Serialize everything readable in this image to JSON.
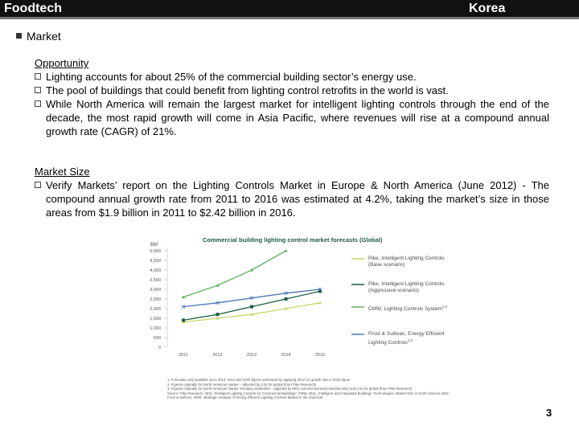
{
  "header": {
    "left": "Foodtech",
    "right": "Korea"
  },
  "section": "Market",
  "blocks": [
    {
      "heading": "Opportunity",
      "items": [
        "Lighting accounts for about 25% of the commercial building sector’s energy use.",
        "The pool of buildings that could benefit from lighting control retrofits in the world is vast.",
        "While North America will remain the largest market for intelligent lighting controls through the end of the decade, the most rapid growth will come in Asia Pacific, where revenues will rise at a compound annual growth rate (CAGR) of 21%."
      ]
    },
    {
      "heading": "Market Size",
      "items": [
        "Verify Markets’ report on the Lighting Controls Market in Europe & North America (June 2012) - The compound annual growth rate from 2011 to 2016 was estimated at 4.2%, taking the market’s size in those areas from $1.9 billion in 2011 to $2.42 billion in 2016."
      ]
    }
  ],
  "chart_data": {
    "type": "line",
    "title": "Commercial building lighting control market forecasts (Global)",
    "y_label": "$M",
    "x": [
      2011,
      2012,
      2013,
      2014,
      2015
    ],
    "xlim": [
      2011,
      2015
    ],
    "xticks": [
      2011,
      2012,
      2013,
      2014,
      2015
    ],
    "ylim": [
      0,
      5000
    ],
    "yticks": [
      0,
      500,
      {
        "value": 1000,
        "label": "1,000"
      },
      {
        "value": 1500,
        "label": "1,500"
      },
      {
        "value": 2000,
        "label": "2,000"
      },
      {
        "value": 2500,
        "label": "2,500"
      },
      {
        "value": 3000,
        "label": "3,000"
      },
      {
        "value": 3500,
        "label": "3,500"
      },
      {
        "value": 4000,
        "label": "4,000"
      },
      {
        "value": 4500,
        "label": "4,500"
      },
      {
        "value": 5000,
        "label": "5,000"
      }
    ],
    "series": [
      {
        "name": "Pike, Intelligent Lighting Controls (Base scenario)",
        "color": "#c6d86a",
        "marker": "triangle",
        "values": [
          1300,
          1500,
          1700,
          2000,
          2300
        ]
      },
      {
        "name": "Pike, Intelligent Lighting Controls (Aggressive scenario)",
        "color": "#1d5c3c",
        "marker": "square",
        "values": [
          1400,
          1700,
          2100,
          2500,
          2900
        ]
      },
      {
        "name": "CMW, Lighting Controls System",
        "note": "1,2",
        "color": "#5fb060",
        "marker": "triangle",
        "values": [
          2600,
          3200,
          4000,
          5000,
          null
        ]
      },
      {
        "name": "Frost & Sullivan, Energy Efficient Lighting Controls",
        "note": "1,3",
        "color": "#4a78b8",
        "marker": "x",
        "values": [
          2100,
          2300,
          2550,
          2800,
          3000
        ]
      }
    ]
  },
  "footnotes": [
    "1. Forecasts only available up to 2013; 2014 and 2015 figures estimated by applying 2012-13 growth rate to 2015 figure",
    "2. Figures originally for North American market – adjusted by 2.5x for global (from Pike Research)",
    "3. Figures originally for North American market including residential – adjusted by 55% (commercial and industrial only) and 2.5x for global (from Pike Research)",
    "Source: Pike Research, 2011, 'Intelligent Lighting Controls for Commercial Buildings'; CMW, 2011, 'Intelligent and Integrated Buildings: Technologies, Market Size in North America 2011'; Frost & Sullivan, 2009, 'Strategic Analysis of Energy Efficient Lighting Controls Market in the Americas'"
  ],
  "page_number": "3"
}
